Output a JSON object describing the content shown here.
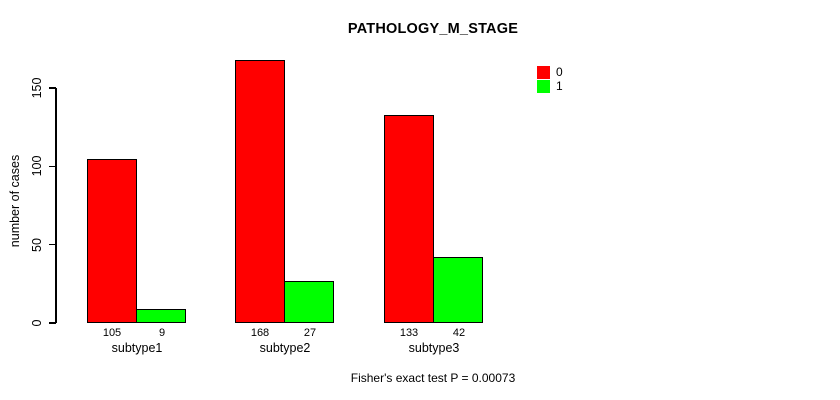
{
  "chart_data": {
    "type": "bar",
    "title": "PATHOLOGY_M_STAGE",
    "xlabel": "",
    "ylabel": "number of cases",
    "categories": [
      "subtype1",
      "subtype2",
      "subtype3"
    ],
    "series": [
      {
        "name": "0",
        "color": "#ff0000",
        "values": [
          105,
          168,
          133
        ]
      },
      {
        "name": "1",
        "color": "#00ff00",
        "values": [
          9,
          27,
          42
        ]
      }
    ],
    "ylim": [
      0,
      150
    ],
    "yticks": [
      0,
      50,
      100,
      150
    ],
    "grid": false,
    "legend_position": "top-right",
    "value_labels_shown": true,
    "annotation": "Fisher's exact test P = 0.00073"
  }
}
